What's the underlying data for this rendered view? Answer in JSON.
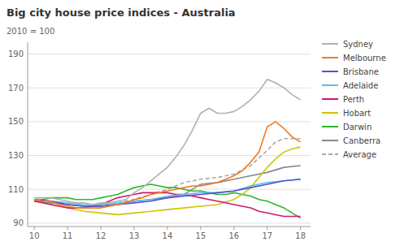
{
  "chart_data": {
    "type": "line",
    "title": "Big city house price indices - Australia",
    "ylabel": "2010 = 100",
    "xlim": [
      9.8,
      18.3
    ],
    "xticks": [
      10,
      11,
      12,
      13,
      14,
      15,
      16,
      17,
      18
    ],
    "ylim": [
      88,
      197
    ],
    "yticks": [
      90,
      110,
      130,
      150,
      170,
      190
    ],
    "grid": "y",
    "legend": "right",
    "series": [
      {
        "name": "Sydney",
        "color": "#b0b0b0",
        "x": [
          10,
          10.25,
          10.5,
          10.75,
          11,
          11.25,
          11.5,
          11.75,
          12,
          12.25,
          12.5,
          12.75,
          13,
          13.25,
          13.5,
          13.75,
          14,
          14.25,
          14.5,
          14.75,
          15,
          15.25,
          15.5,
          15.75,
          16,
          16.25,
          16.5,
          16.75,
          17,
          17.25,
          17.5,
          17.75,
          18
        ],
        "values": [
          105,
          105,
          105,
          104,
          103,
          102,
          102,
          101,
          102,
          102,
          103,
          104,
          108,
          111,
          115,
          119,
          123,
          129,
          136,
          145,
          155,
          158,
          155,
          155,
          156,
          159,
          163,
          168,
          175,
          173,
          170,
          166,
          163
        ]
      },
      {
        "name": "Melbourne",
        "color": "#f47920",
        "x": [
          10,
          10.25,
          10.5,
          10.75,
          11,
          11.25,
          11.5,
          11.75,
          12,
          12.25,
          12.5,
          12.75,
          13,
          13.25,
          13.5,
          13.75,
          14,
          14.25,
          14.5,
          14.75,
          15,
          15.25,
          15.5,
          15.75,
          16,
          16.25,
          16.5,
          16.75,
          17,
          17.25,
          17.5,
          17.75,
          18
        ],
        "values": [
          104,
          103,
          103,
          101,
          100,
          99,
          99,
          99,
          99,
          100,
          101,
          102,
          104,
          105,
          107,
          108,
          109,
          110,
          111,
          112,
          112,
          113,
          114,
          116,
          118,
          121,
          126,
          132,
          147,
          150,
          146,
          141,
          138
        ]
      },
      {
        "name": "Brisbane",
        "color": "#5a4fcf",
        "x": [
          10,
          10.5,
          11,
          11.5,
          12,
          12.5,
          13,
          13.5,
          14,
          14.5,
          15,
          15.5,
          16,
          16.5,
          17,
          17.5,
          18
        ],
        "values": [
          104,
          103,
          101,
          100,
          100,
          101,
          102,
          103,
          105,
          106,
          107,
          108,
          109,
          111,
          113,
          115,
          116
        ]
      },
      {
        "name": "Adelaide",
        "color": "#5bbfe8",
        "x": [
          10,
          10.5,
          11,
          11.5,
          12,
          12.5,
          13,
          13.5,
          14,
          14.5,
          15,
          15.5,
          16,
          16.5,
          17,
          17.5,
          18
        ],
        "values": [
          104,
          103,
          102,
          101,
          101,
          102,
          103,
          104,
          106,
          107,
          108,
          108,
          109,
          112,
          114,
          115,
          116
        ]
      },
      {
        "name": "Perth",
        "color": "#cc1a6e",
        "x": [
          10,
          10.25,
          10.5,
          10.75,
          11,
          11.25,
          11.5,
          11.75,
          12,
          12.25,
          12.5,
          12.75,
          13,
          13.25,
          13.5,
          13.75,
          14,
          14.25,
          14.5,
          14.75,
          15,
          15.25,
          15.5,
          15.75,
          16,
          16.25,
          16.5,
          16.75,
          17,
          17.25,
          17.5,
          17.75,
          18
        ],
        "values": [
          103,
          102,
          101,
          100,
          99,
          99,
          99,
          100,
          101,
          103,
          105,
          106,
          107,
          108,
          108,
          108,
          108,
          107,
          107,
          106,
          105,
          104,
          103,
          102,
          101,
          100,
          99,
          97,
          96,
          95,
          94,
          94,
          94
        ]
      },
      {
        "name": "Hobart",
        "color": "#c8c800",
        "x": [
          10,
          10.5,
          11,
          11.5,
          12,
          12.5,
          13,
          13.5,
          14,
          14.5,
          15,
          15.5,
          16,
          16.25,
          16.5,
          16.75,
          17,
          17.25,
          17.5,
          17.75,
          18
        ],
        "values": [
          103,
          101,
          99,
          97,
          96,
          95,
          96,
          97,
          98,
          99,
          100,
          101,
          104,
          107,
          111,
          117,
          123,
          128,
          132,
          134,
          135
        ]
      },
      {
        "name": "Darwin",
        "color": "#2db52d",
        "x": [
          10,
          10.25,
          10.5,
          10.75,
          11,
          11.25,
          11.5,
          11.75,
          12,
          12.25,
          12.5,
          12.75,
          13,
          13.25,
          13.5,
          13.75,
          14,
          14.25,
          14.5,
          14.75,
          15,
          15.25,
          15.5,
          15.75,
          16,
          16.25,
          16.5,
          16.75,
          17,
          17.25,
          17.5,
          17.75,
          18
        ],
        "values": [
          103,
          104,
          105,
          105,
          105,
          104,
          104,
          104,
          105,
          106,
          107,
          109,
          111,
          112,
          113,
          112,
          111,
          111,
          110,
          109,
          109,
          108,
          107,
          107,
          108,
          107,
          106,
          104,
          103,
          101,
          99,
          96,
          93
        ]
      },
      {
        "name": "Canberra",
        "color": "#888888",
        "x": [
          10,
          10.5,
          11,
          11.5,
          12,
          12.5,
          13,
          13.5,
          14,
          14.5,
          15,
          15.5,
          16,
          16.5,
          17,
          17.5,
          18
        ],
        "values": [
          103,
          102,
          101,
          100,
          100,
          101,
          103,
          104,
          105,
          107,
          113,
          114,
          116,
          118,
          120,
          123,
          124
        ]
      },
      {
        "name": "Average",
        "color": "#aaaaaa",
        "line_style": "dashed",
        "x": [
          10,
          10.5,
          11,
          11.5,
          12,
          12.5,
          13,
          13.5,
          14,
          14.5,
          15,
          15.5,
          16,
          16.5,
          17,
          17.25,
          17.5,
          18
        ],
        "values": [
          104,
          103,
          101,
          100,
          100,
          102,
          104,
          107,
          110,
          114,
          116,
          117,
          119,
          124,
          133,
          138,
          140,
          140
        ]
      }
    ]
  }
}
